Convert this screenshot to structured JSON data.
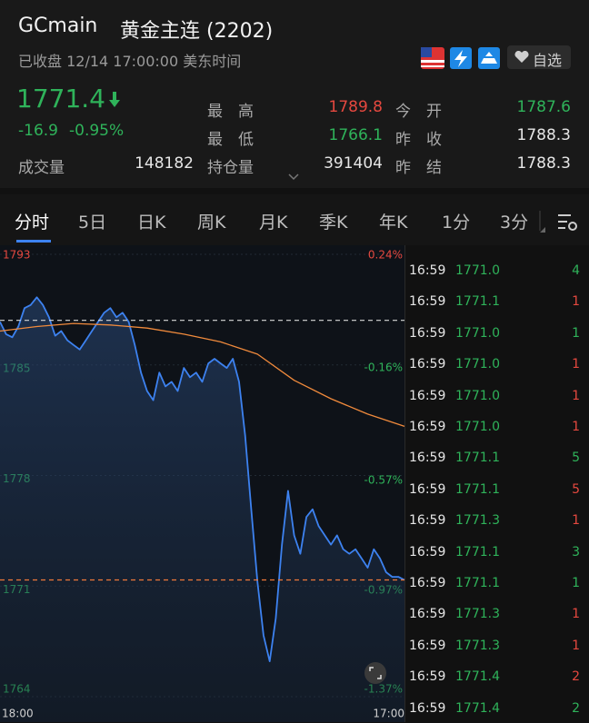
{
  "header": {
    "symbol": "GCmain",
    "name": "黄金主连 (2202)",
    "status": "已收盘 12/14 17:00:00 美东时间",
    "watch": "自选"
  },
  "quote": {
    "price": "1771.4",
    "change": "-16.9",
    "change_pct": "-0.95%",
    "stats": [
      {
        "label": "最　高",
        "value": "1789.8",
        "color": "#e5483f"
      },
      {
        "label": "今　开",
        "value": "1787.6",
        "color": "#2fb35a"
      },
      {
        "label": "最　低",
        "value": "1766.1",
        "color": "#2fb35a"
      },
      {
        "label": "昨　收",
        "value": "1788.3",
        "color": "#e6e6e6"
      },
      {
        "label": "成交量",
        "value": "148182",
        "color": "#e6e6e6"
      },
      {
        "label": "持仓量",
        "value": "391404",
        "color": "#e6e6e6"
      },
      {
        "label": "昨　结",
        "value": "1788.3",
        "color": "#e6e6e6"
      }
    ]
  },
  "tabs": [
    "分时",
    "5日",
    "日K",
    "周K",
    "月K",
    "季K",
    "年K",
    "1分",
    "3分"
  ],
  "chart_data": {
    "type": "line",
    "x_labels": [
      "18:00",
      "17:00"
    ],
    "ylim": [
      1763.8,
      1792.6
    ],
    "yticks": [
      {
        "value": 1792.6,
        "label": "1793"
      },
      {
        "value": 1785.4,
        "label": "1785"
      },
      {
        "value": 1778.2,
        "label": "1778"
      },
      {
        "value": 1771.0,
        "label": "1771"
      },
      {
        "value": 1763.8,
        "label": "1764"
      }
    ],
    "y2lim": [
      -1.37,
      0.24
    ],
    "y2ticks": [
      {
        "value": 0.24,
        "label": "0.24%"
      },
      {
        "value": -0.16,
        "label": "-0.16%"
      },
      {
        "value": -0.57,
        "label": "-0.57%"
      },
      {
        "value": -0.97,
        "label": "-0.97%"
      },
      {
        "value": -1.37,
        "label": "-1.37%"
      }
    ],
    "hlines": [
      {
        "value": 1788.3,
        "color": "#d8d8d8"
      },
      {
        "value": 1771.4,
        "color": "#f07a3a"
      }
    ],
    "series": [
      {
        "color": "#3d82f0",
        "area": true,
        "values": [
          1788.2,
          1787.4,
          1787.2,
          1787.9,
          1789.1,
          1789.3,
          1789.8,
          1789.3,
          1788.5,
          1787.3,
          1787.6,
          1787.0,
          1786.7,
          1786.4,
          1787.0,
          1787.6,
          1788.2,
          1788.8,
          1789.1,
          1788.5,
          1788.8,
          1788.2,
          1786.7,
          1784.9,
          1783.7,
          1783.1,
          1784.9,
          1784.0,
          1784.3,
          1783.7,
          1785.2,
          1784.6,
          1784.9,
          1784.3,
          1785.5,
          1785.8,
          1785.5,
          1785.2,
          1785.8,
          1784.3,
          1780.8,
          1776.0,
          1771.3,
          1767.8,
          1766.1,
          1768.9,
          1773.7,
          1777.2,
          1774.3,
          1773.1,
          1775.5,
          1776.0,
          1774.9,
          1774.3,
          1773.7,
          1774.3,
          1773.4,
          1773.1,
          1773.4,
          1772.8,
          1772.2,
          1773.4,
          1772.8,
          1771.9,
          1771.6,
          1771.6,
          1771.4
        ]
      },
      {
        "color": "#f08a3c",
        "area": false,
        "values": [
          1787.6,
          1787.9,
          1788.1,
          1788.0,
          1787.8,
          1787.4,
          1786.9,
          1786.1,
          1784.4,
          1783.2,
          1782.2,
          1781.4
        ]
      }
    ]
  },
  "trades": {
    "rows": [
      [
        "16:59",
        "1771.0",
        "4"
      ],
      [
        "16:59",
        "1771.1",
        "1"
      ],
      [
        "16:59",
        "1771.0",
        "1"
      ],
      [
        "16:59",
        "1771.0",
        "1"
      ],
      [
        "16:59",
        "1771.0",
        "1"
      ],
      [
        "16:59",
        "1771.0",
        "1"
      ],
      [
        "16:59",
        "1771.1",
        "5"
      ],
      [
        "16:59",
        "1771.1",
        "5"
      ],
      [
        "16:59",
        "1771.3",
        "1"
      ],
      [
        "16:59",
        "1771.1",
        "3"
      ],
      [
        "16:59",
        "1771.1",
        "1"
      ],
      [
        "16:59",
        "1771.3",
        "1"
      ],
      [
        "16:59",
        "1771.3",
        "1"
      ],
      [
        "16:59",
        "1771.4",
        "2"
      ],
      [
        "16:59",
        "1771.4",
        "2"
      ]
    ]
  }
}
